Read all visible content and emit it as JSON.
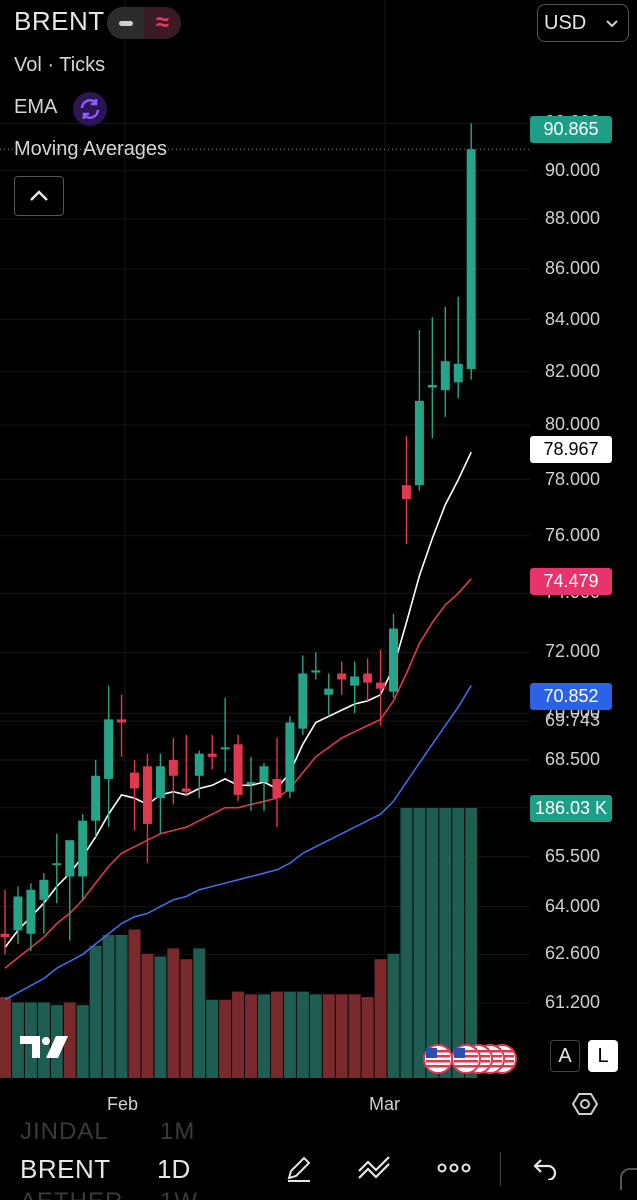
{
  "header": {
    "symbol": "BRENT",
    "currency": "USD"
  },
  "indicators": {
    "vol": "Vol · Ticks",
    "ema": "EMA",
    "ma": "Moving Averages"
  },
  "price_axis": [
    "92.000",
    "90.000",
    "88.000",
    "86.000",
    "84.000",
    "82.000",
    "80.000",
    "78.000",
    "76.000",
    "74.000",
    "72.000",
    "70.000",
    "69.743",
    "68.500",
    "67.000",
    "65.500",
    "64.000",
    "62.600",
    "61.200"
  ],
  "price_tags": {
    "last": "90.865",
    "ema_fast": "78.967",
    "ema_mid": "74.479",
    "ema_slow": "70.852",
    "volume": "186.03 K"
  },
  "time_axis": [
    "Feb",
    "Mar"
  ],
  "scale_buttons": {
    "auto": "A",
    "log": "L"
  },
  "bottom": {
    "symbol": "BRENT",
    "timeframe": "1D",
    "ghost_above_symbol": "JINDAL",
    "ghost_above_tf": "1M",
    "ghost_below_symbol": "AETHER",
    "ghost_below_tf": "1W"
  },
  "colors": {
    "up": "#26a48a",
    "down": "#e0384e",
    "vol_up": "#1f5c52",
    "vol_down": "#7a2a2c",
    "ema_fast": "#ffffff",
    "ema_mid": "#e0384e",
    "ema_slow": "#3f6de8",
    "last_tag": "#1e9e86",
    "slow_tag": "#2b63e6",
    "mid_tag": "#e8336b"
  },
  "chart_data": {
    "type": "candlestick",
    "y_scale": "log",
    "ylim": [
      60.5,
      93
    ],
    "candles": [
      {
        "o": 63.2,
        "h": 64.5,
        "l": 62.6,
        "c": 63.1
      },
      {
        "o": 63.3,
        "h": 64.6,
        "l": 62.9,
        "c": 64.3
      },
      {
        "o": 63.2,
        "h": 64.7,
        "l": 62.7,
        "c": 64.5
      },
      {
        "o": 64.2,
        "h": 65.0,
        "l": 63.2,
        "c": 64.8
      },
      {
        "o": 65.3,
        "h": 66.2,
        "l": 64.1,
        "c": 65.3
      },
      {
        "o": 64.9,
        "h": 65.9,
        "l": 63.0,
        "c": 66.0
      },
      {
        "o": 64.9,
        "h": 66.8,
        "l": 64.2,
        "c": 66.6
      },
      {
        "o": 66.6,
        "h": 68.5,
        "l": 66.1,
        "c": 68.0
      },
      {
        "o": 67.9,
        "h": 70.9,
        "l": 66.4,
        "c": 69.8
      },
      {
        "o": 69.8,
        "h": 70.6,
        "l": 68.6,
        "c": 69.7
      },
      {
        "o": 68.1,
        "h": 68.5,
        "l": 66.3,
        "c": 67.6
      },
      {
        "o": 68.3,
        "h": 68.7,
        "l": 65.3,
        "c": 66.5
      },
      {
        "o": 67.3,
        "h": 68.7,
        "l": 66.2,
        "c": 68.3
      },
      {
        "o": 68.5,
        "h": 69.2,
        "l": 67.1,
        "c": 68.0
      },
      {
        "o": 67.6,
        "h": 69.3,
        "l": 67.4,
        "c": 67.5
      },
      {
        "o": 68.0,
        "h": 68.8,
        "l": 67.3,
        "c": 68.7
      },
      {
        "o": 68.7,
        "h": 69.3,
        "l": 68.2,
        "c": 68.6
      },
      {
        "o": 68.9,
        "h": 70.5,
        "l": 68.1,
        "c": 68.9
      },
      {
        "o": 69.0,
        "h": 69.3,
        "l": 67.2,
        "c": 67.4
      },
      {
        "o": 67.8,
        "h": 68.6,
        "l": 66.9,
        "c": 67.8
      },
      {
        "o": 67.8,
        "h": 68.4,
        "l": 66.9,
        "c": 68.3
      },
      {
        "o": 67.9,
        "h": 69.2,
        "l": 66.4,
        "c": 67.3
      },
      {
        "o": 67.5,
        "h": 69.9,
        "l": 67.3,
        "c": 69.7
      },
      {
        "o": 69.5,
        "h": 71.9,
        "l": 69.3,
        "c": 71.3
      },
      {
        "o": 71.4,
        "h": 72.0,
        "l": 71.1,
        "c": 71.4
      },
      {
        "o": 70.6,
        "h": 71.3,
        "l": 69.9,
        "c": 70.8
      },
      {
        "o": 71.3,
        "h": 71.7,
        "l": 70.6,
        "c": 71.1
      },
      {
        "o": 70.9,
        "h": 71.7,
        "l": 70.0,
        "c": 71.2
      },
      {
        "o": 71.3,
        "h": 71.8,
        "l": 70.4,
        "c": 71.0
      },
      {
        "o": 71.0,
        "h": 72.1,
        "l": 69.6,
        "c": 70.8
      },
      {
        "o": 70.7,
        "h": 73.3,
        "l": 70.5,
        "c": 72.8
      },
      {
        "o": 77.8,
        "h": 79.6,
        "l": 75.7,
        "c": 77.3
      },
      {
        "o": 77.8,
        "h": 83.6,
        "l": 77.6,
        "c": 80.9
      },
      {
        "o": 81.4,
        "h": 84.1,
        "l": 79.5,
        "c": 81.5
      },
      {
        "o": 81.3,
        "h": 84.5,
        "l": 80.3,
        "c": 82.4
      },
      {
        "o": 81.6,
        "h": 84.9,
        "l": 81.0,
        "c": 82.3
      },
      {
        "o": 82.1,
        "h": 92.0,
        "l": 81.7,
        "c": 90.9
      }
    ],
    "volume": [
      {
        "v": 0.3,
        "up": false
      },
      {
        "v": 0.28,
        "up": true
      },
      {
        "v": 0.28,
        "up": true
      },
      {
        "v": 0.28,
        "up": true
      },
      {
        "v": 0.27,
        "up": true
      },
      {
        "v": 0.28,
        "up": false
      },
      {
        "v": 0.27,
        "up": true
      },
      {
        "v": 0.49,
        "up": true
      },
      {
        "v": 0.53,
        "up": true
      },
      {
        "v": 0.53,
        "up": true
      },
      {
        "v": 0.55,
        "up": false
      },
      {
        "v": 0.46,
        "up": false
      },
      {
        "v": 0.45,
        "up": true
      },
      {
        "v": 0.48,
        "up": false
      },
      {
        "v": 0.44,
        "up": false
      },
      {
        "v": 0.48,
        "up": true
      },
      {
        "v": 0.29,
        "up": true
      },
      {
        "v": 0.29,
        "up": false
      },
      {
        "v": 0.32,
        "up": false
      },
      {
        "v": 0.31,
        "up": false
      },
      {
        "v": 0.31,
        "up": true
      },
      {
        "v": 0.32,
        "up": false
      },
      {
        "v": 0.32,
        "up": true
      },
      {
        "v": 0.32,
        "up": true
      },
      {
        "v": 0.31,
        "up": true
      },
      {
        "v": 0.31,
        "up": false
      },
      {
        "v": 0.31,
        "up": false
      },
      {
        "v": 0.31,
        "up": false
      },
      {
        "v": 0.3,
        "up": false
      },
      {
        "v": 0.44,
        "up": false
      },
      {
        "v": 0.46,
        "up": true
      },
      {
        "v": 1.0,
        "up": true
      },
      {
        "v": 1.0,
        "up": true
      },
      {
        "v": 1.0,
        "up": true
      },
      {
        "v": 1.0,
        "up": true
      },
      {
        "v": 1.0,
        "up": true
      },
      {
        "v": 1.0,
        "up": true
      }
    ],
    "volume_last": 186.03,
    "ema_fast": [
      62.8,
      63.3,
      63.7,
      64.1,
      64.6,
      65.0,
      65.5,
      66.1,
      66.8,
      67.4,
      67.3,
      67.1,
      67.4,
      67.5,
      67.4,
      67.6,
      67.7,
      67.9,
      67.7,
      67.7,
      67.8,
      67.6,
      68.1,
      69.0,
      69.7,
      69.9,
      70.1,
      70.3,
      70.4,
      70.6,
      71.5,
      73.0,
      74.6,
      75.9,
      77.1,
      78.0,
      79.0
    ],
    "ema_mid": [
      62.2,
      62.5,
      62.8,
      63.1,
      63.5,
      63.8,
      64.2,
      64.7,
      65.2,
      65.6,
      65.8,
      66.0,
      66.2,
      66.3,
      66.4,
      66.6,
      66.8,
      67.0,
      67.0,
      67.1,
      67.2,
      67.3,
      67.6,
      68.1,
      68.6,
      68.9,
      69.2,
      69.4,
      69.6,
      69.8,
      70.4,
      71.3,
      72.3,
      73.0,
      73.6,
      74.0,
      74.5
    ],
    "ema_slow": [
      61.3,
      61.5,
      61.7,
      61.9,
      62.2,
      62.4,
      62.6,
      62.9,
      63.2,
      63.5,
      63.7,
      63.8,
      64.0,
      64.2,
      64.3,
      64.5,
      64.6,
      64.7,
      64.8,
      64.9,
      65.0,
      65.1,
      65.3,
      65.6,
      65.8,
      66.0,
      66.2,
      66.4,
      66.6,
      66.8,
      67.2,
      67.8,
      68.4,
      69.0,
      69.6,
      70.2,
      70.9
    ]
  }
}
